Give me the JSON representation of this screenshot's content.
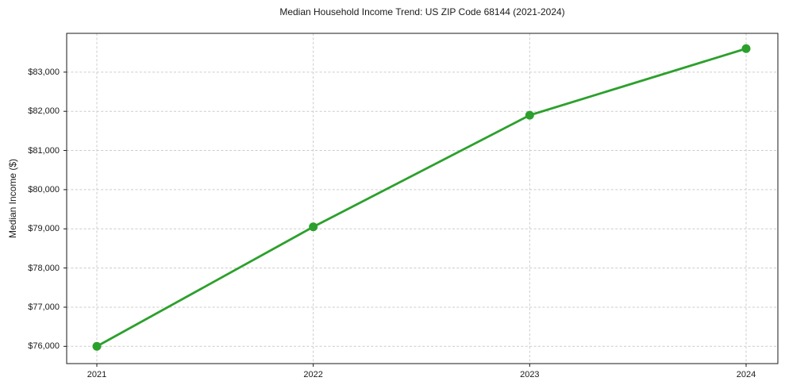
{
  "figure": {
    "title": "Median Household Income Trend: US ZIP Code 68144 (2021-2024)",
    "ylabel": "Median Income ($)"
  },
  "chart_data": {
    "type": "line",
    "title": "Median Household Income Trend: US ZIP Code 68144 (2021-2024)",
    "xlabel": "",
    "ylabel": "Median Income ($)",
    "categories": [
      "2021",
      "2022",
      "2023",
      "2024"
    ],
    "values": [
      76000,
      79050,
      81900,
      83600
    ],
    "ytick_values": [
      76000,
      77000,
      78000,
      79000,
      80000,
      81000,
      82000,
      83000
    ],
    "ytick_labels": [
      "$76,000",
      "$77,000",
      "$78,000",
      "$79,000",
      "$80,000",
      "$81,000",
      "$82,000",
      "$83,000"
    ],
    "ylim": [
      75560,
      83990
    ],
    "grid": true,
    "grid_style": "dashed",
    "legend": "none",
    "colors": {
      "line": "#2ca02c",
      "marker": "#2ca02c",
      "grid": "#cccccc",
      "axis": "#1a1a1a",
      "text": "#1a1a1a",
      "background": "#ffffff"
    }
  }
}
